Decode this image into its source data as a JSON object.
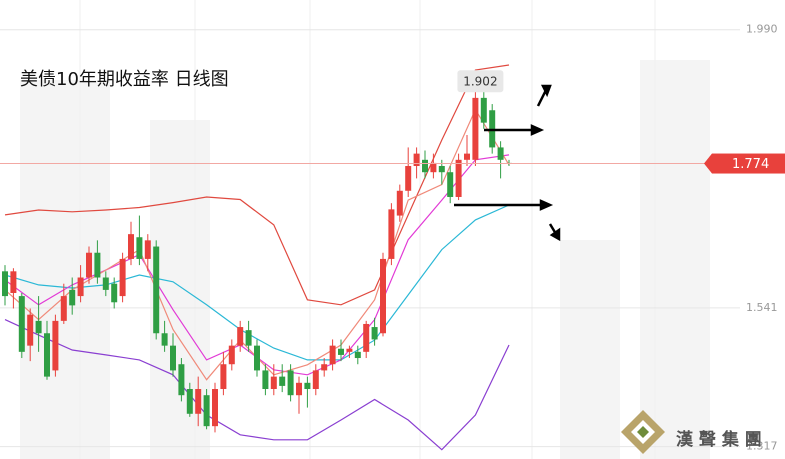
{
  "chart_data": {
    "type": "candlestick",
    "title": "美债10年期收益率  日线图",
    "up_color": "#e8413c",
    "down_color": "#2f9e44",
    "open": [
      1.6,
      1.565,
      1.56,
      1.48,
      1.52,
      1.5,
      1.44,
      1.52,
      1.57,
      1.56,
      1.59,
      1.63,
      1.59,
      1.58,
      1.56,
      1.62,
      1.655,
      1.62,
      1.64,
      1.5,
      1.48,
      1.45,
      1.41,
      1.37,
      1.4,
      1.35,
      1.41,
      1.45,
      1.48,
      1.505,
      1.48,
      1.44,
      1.41,
      1.43,
      1.44,
      1.4,
      1.42,
      1.41,
      1.44,
      1.45,
      1.475,
      1.47,
      1.47,
      1.47,
      1.51,
      1.5,
      1.62,
      1.69,
      1.73,
      1.77,
      1.78,
      1.76,
      1.77,
      1.76,
      1.72,
      1.78,
      1.78,
      1.88,
      1.86,
      1.8,
      1.775
    ],
    "high": [
      1.61,
      1.605,
      1.565,
      1.54,
      1.56,
      1.52,
      1.53,
      1.58,
      1.59,
      1.61,
      1.64,
      1.65,
      1.6,
      1.59,
      1.63,
      1.68,
      1.69,
      1.66,
      1.65,
      1.52,
      1.5,
      1.46,
      1.42,
      1.43,
      1.41,
      1.42,
      1.47,
      1.49,
      1.52,
      1.52,
      1.49,
      1.45,
      1.45,
      1.45,
      1.45,
      1.43,
      1.43,
      1.45,
      1.46,
      1.49,
      1.49,
      1.48,
      1.48,
      1.52,
      1.525,
      1.63,
      1.71,
      1.74,
      1.8,
      1.8,
      1.795,
      1.79,
      1.78,
      1.77,
      1.79,
      1.82,
      1.902,
      1.9,
      1.87,
      1.81,
      1.78
    ],
    "low": [
      1.545,
      1.54,
      1.46,
      1.455,
      1.47,
      1.425,
      1.43,
      1.515,
      1.53,
      1.55,
      1.58,
      1.58,
      1.56,
      1.54,
      1.55,
      1.61,
      1.61,
      1.6,
      1.49,
      1.47,
      1.43,
      1.39,
      1.365,
      1.35,
      1.345,
      1.34,
      1.4,
      1.44,
      1.47,
      1.47,
      1.43,
      1.4,
      1.4,
      1.405,
      1.39,
      1.37,
      1.38,
      1.4,
      1.43,
      1.44,
      1.455,
      1.46,
      1.45,
      1.46,
      1.48,
      1.495,
      1.61,
      1.68,
      1.72,
      1.75,
      1.75,
      1.75,
      1.74,
      1.71,
      1.715,
      1.77,
      1.77,
      1.83,
      1.79,
      1.75,
      1.77
    ],
    "close": [
      1.56,
      1.6,
      1.47,
      1.53,
      1.5,
      1.43,
      1.52,
      1.56,
      1.545,
      1.59,
      1.63,
      1.59,
      1.57,
      1.55,
      1.62,
      1.66,
      1.62,
      1.65,
      1.5,
      1.48,
      1.44,
      1.4,
      1.37,
      1.41,
      1.35,
      1.41,
      1.45,
      1.48,
      1.51,
      1.48,
      1.44,
      1.41,
      1.43,
      1.415,
      1.4,
      1.42,
      1.41,
      1.44,
      1.45,
      1.48,
      1.465,
      1.475,
      1.46,
      1.515,
      1.49,
      1.62,
      1.7,
      1.73,
      1.77,
      1.79,
      1.76,
      1.775,
      1.76,
      1.72,
      1.78,
      1.79,
      1.88,
      1.84,
      1.8,
      1.78,
      1.774
    ],
    "lines": [
      {
        "color": "#e0493f",
        "x": [
          0,
          4,
          8,
          12,
          16,
          20,
          24,
          28,
          32,
          36,
          40,
          44,
          48,
          52,
          56,
          60
        ],
        "values": [
          1.691,
          1.699,
          1.696,
          1.699,
          1.703,
          1.711,
          1.72,
          1.716,
          1.675,
          1.554,
          1.546,
          1.57,
          1.691,
          1.812,
          1.925,
          1.933
        ]
      },
      {
        "color": "#8a3fd1",
        "x": [
          0,
          4,
          8,
          12,
          16,
          20,
          24,
          28,
          32,
          36,
          40,
          44,
          48,
          52,
          56,
          60
        ],
        "values": [
          1.522,
          1.497,
          1.473,
          1.465,
          1.457,
          1.433,
          1.368,
          1.336,
          1.328,
          1.328,
          1.36,
          1.393,
          1.36,
          1.312,
          1.368,
          1.481
        ]
      },
      {
        "color": "#2bb8d6",
        "x": [
          0,
          4,
          8,
          12,
          16,
          20,
          24,
          28,
          32,
          36,
          40,
          44,
          48,
          52,
          56,
          60
        ],
        "values": [
          1.594,
          1.578,
          1.573,
          1.578,
          1.594,
          1.583,
          1.546,
          1.506,
          1.476,
          1.457,
          1.457,
          1.489,
          1.562,
          1.635,
          1.683,
          1.707
        ]
      },
      {
        "color": "#e23ad6",
        "x": [
          0,
          4,
          8,
          12,
          16,
          20,
          24,
          28,
          32,
          36,
          40,
          44,
          48,
          52,
          56,
          60
        ],
        "values": [
          1.586,
          1.546,
          1.578,
          1.602,
          1.627,
          1.538,
          1.457,
          1.481,
          1.441,
          1.433,
          1.457,
          1.522,
          1.651,
          1.715,
          1.78,
          1.788
        ]
      },
      {
        "color": "#f08a7a",
        "x": [
          0,
          4,
          8,
          12,
          16,
          20,
          24,
          28,
          32,
          36,
          40,
          44,
          48,
          52,
          56,
          60
        ],
        "values": [
          1.57,
          1.522,
          1.57,
          1.602,
          1.635,
          1.506,
          1.425,
          1.489,
          1.433,
          1.449,
          1.481,
          1.554,
          1.715,
          1.74,
          1.861,
          1.772
        ]
      }
    ],
    "ylim": [
      1.297,
      2.038
    ],
    "yticks": [
      1.317,
      1.541,
      {
        "value": 1.99,
        "label": "1.990"
      }
    ],
    "grid": true
  },
  "watermark": "漢 聲 集 團"
}
